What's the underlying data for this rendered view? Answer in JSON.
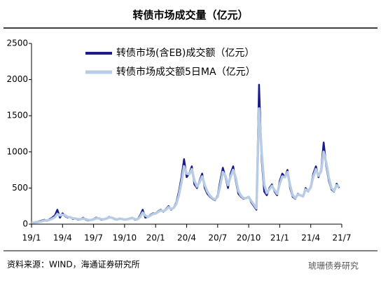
{
  "chart_data": {
    "type": "line",
    "title": "转债市场成交量（亿元）",
    "source": "资料来源：WIND，海通证券研究所",
    "watermark": "琥珊债券研究",
    "categories": [
      "19/1",
      null,
      null,
      null,
      null,
      null,
      null,
      null,
      null,
      null,
      null,
      null,
      "19/4",
      null,
      null,
      null,
      null,
      null,
      null,
      null,
      null,
      null,
      null,
      null,
      "19/7",
      null,
      null,
      null,
      null,
      null,
      null,
      null,
      null,
      null,
      null,
      null,
      "19/10",
      null,
      null,
      null,
      null,
      null,
      null,
      null,
      null,
      null,
      null,
      null,
      "20/1",
      null,
      null,
      null,
      null,
      null,
      null,
      null,
      null,
      null,
      null,
      null,
      "20/4",
      null,
      null,
      null,
      null,
      null,
      null,
      null,
      null,
      null,
      null,
      null,
      "20/7",
      null,
      null,
      null,
      null,
      null,
      null,
      null,
      null,
      null,
      null,
      null,
      "20/10",
      null,
      null,
      null,
      null,
      null,
      null,
      null,
      null,
      null,
      null,
      null,
      "21/1",
      null,
      null,
      null,
      null,
      null,
      null,
      null,
      null,
      null,
      null,
      null,
      "21/4",
      null,
      null,
      null,
      null,
      null,
      null,
      null,
      null,
      null,
      null,
      null,
      "21/7"
    ],
    "series": [
      {
        "name": "转债市场(含EB)成交额（亿元）",
        "color": "#1a1a8c",
        "values": [
          20,
          25,
          30,
          40,
          50,
          60,
          45,
          70,
          90,
          120,
          200,
          90,
          150,
          110,
          90,
          100,
          70,
          80,
          60,
          70,
          90,
          60,
          50,
          60,
          70,
          90,
          80,
          60,
          70,
          80,
          100,
          90,
          70,
          60,
          80,
          70,
          60,
          70,
          80,
          90,
          60,
          70,
          120,
          200,
          90,
          100,
          130,
          150,
          150,
          180,
          200,
          170,
          210,
          250,
          200,
          230,
          300,
          450,
          650,
          900,
          650,
          700,
          800,
          550,
          500,
          600,
          700,
          500,
          420,
          380,
          350,
          330,
          400,
          600,
          780,
          650,
          500,
          700,
          800,
          600,
          420,
          380,
          350,
          360,
          380,
          300,
          250,
          200,
          1930,
          900,
          450,
          400,
          500,
          550,
          450,
          400,
          600,
          700,
          650,
          750,
          500,
          380,
          350,
          420,
          400,
          380,
          500,
          450,
          520,
          700,
          800,
          650,
          750,
          1130,
          800,
          600,
          480,
          450,
          560,
          500,
          null
        ]
      },
      {
        "name": "转债市场成交额5日MA（亿元）",
        "color": "#b8cce4",
        "values": [
          20,
          23,
          27,
          33,
          40,
          50,
          52,
          60,
          75,
          95,
          140,
          120,
          130,
          120,
          100,
          95,
          80,
          78,
          68,
          68,
          78,
          68,
          57,
          58,
          65,
          80,
          80,
          68,
          68,
          76,
          92,
          90,
          76,
          65,
          75,
          72,
          63,
          68,
          76,
          85,
          68,
          68,
          100,
          160,
          120,
          100,
          120,
          140,
          148,
          170,
          190,
          178,
          200,
          235,
          210,
          225,
          280,
          400,
          580,
          800,
          700,
          690,
          760,
          600,
          520,
          580,
          660,
          540,
          450,
          395,
          360,
          340,
          380,
          540,
          720,
          670,
          540,
          660,
          750,
          640,
          460,
          395,
          360,
          360,
          375,
          320,
          270,
          220,
          1600,
          1000,
          550,
          430,
          480,
          530,
          470,
          420,
          560,
          660,
          650,
          720,
          540,
          400,
          360,
          410,
          400,
          385,
          480,
          455,
          510,
          660,
          760,
          670,
          730,
          1000,
          850,
          640,
          500,
          460,
          540,
          510,
          null
        ]
      }
    ],
    "ylim": [
      0,
      2500
    ],
    "yticks": [
      0,
      500,
      1000,
      1500,
      2000,
      2500
    ],
    "grid": false
  }
}
